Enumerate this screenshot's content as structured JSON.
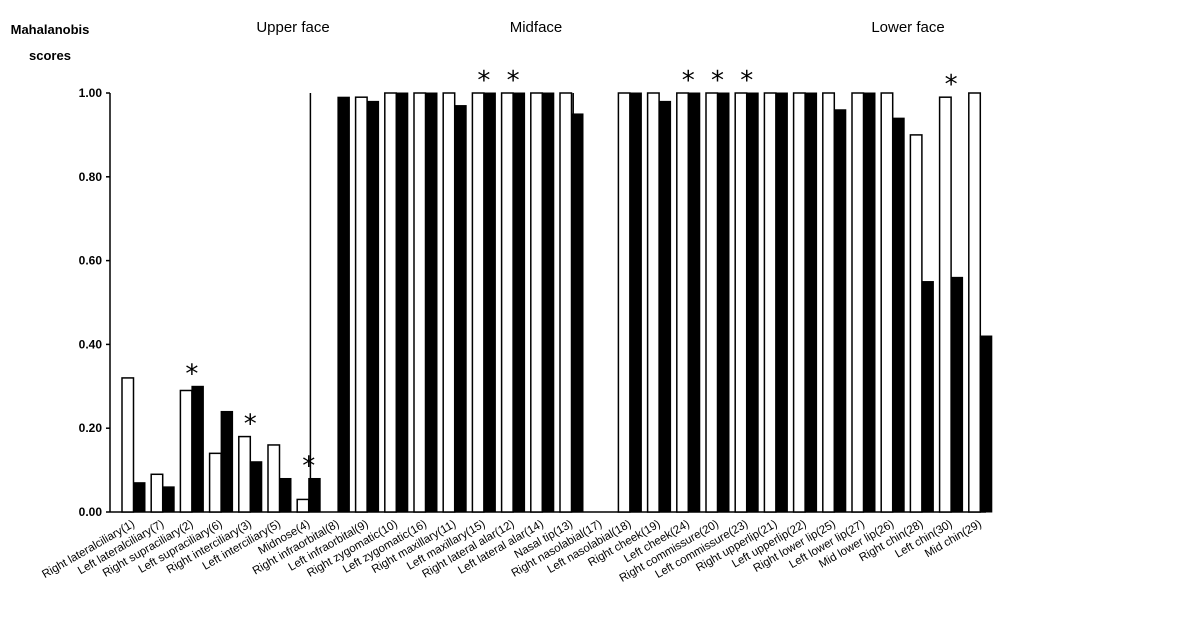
{
  "chart_data": {
    "type": "bar",
    "ylabel": [
      "Mahalanobis",
      "scores"
    ],
    "ylim": [
      0,
      1
    ],
    "yticks": [
      "0.00",
      "0.20",
      "0.40",
      "0.60",
      "0.80",
      "1.00"
    ],
    "grid": false,
    "sections": [
      "Upper face",
      "Midface",
      "Lower face"
    ],
    "categories": [
      "Right lateralciliary(1)",
      "Left lateralciliary(7)",
      "Right supraciliary(2)",
      "Left supraciliary(6)",
      "Right interciliary(3)",
      "Left interciliary(5)",
      "Midnose(4)",
      "Right infraorbital(8)",
      "Left infraorbital(9)",
      "Right zygomatic(10)",
      "Left zygomatic(16)",
      "Right maxillary(11)",
      "Left maxillary(15)",
      "Right lateral alar(12)",
      "Left lateral alar(14)",
      "Nasal tip(13)",
      "Right nasolabial(17)",
      "Left nasolabial(18)",
      "Right cheek(19)",
      "Left cheek(24)",
      "Right commissure(20)",
      "Left commissure(23)",
      "Right upperlip(21)",
      "Left upperlip(22)",
      "Right lower lip(25)",
      "Left lower lip(27)",
      "Mid lower lip(26)",
      "Right chin(28)",
      "Left chin(30)",
      "Mid chin(29)"
    ],
    "series": [
      {
        "color": "#ffffff",
        "values": [
          0.32,
          0.09,
          0.29,
          0.14,
          0.18,
          0.16,
          0.03,
          0.0,
          0.99,
          1.0,
          1.0,
          1.0,
          1.0,
          1.0,
          1.0,
          1.0,
          0.0,
          1.0,
          1.0,
          1.0,
          1.0,
          1.0,
          1.0,
          1.0,
          1.0,
          1.0,
          1.0,
          0.9,
          0.99,
          1.0
        ]
      },
      {
        "color": "#000000",
        "values": [
          0.07,
          0.06,
          0.3,
          0.24,
          0.12,
          0.08,
          0.08,
          0.99,
          0.98,
          1.0,
          1.0,
          0.97,
          1.0,
          1.0,
          1.0,
          0.95,
          0.0,
          1.0,
          0.98,
          1.0,
          1.0,
          1.0,
          1.0,
          1.0,
          0.96,
          1.0,
          0.94,
          0.55,
          0.56,
          0.42
        ]
      }
    ],
    "mid_chin_partial": {
      "white": 0.9,
      "black": 0.06
    },
    "asterisks": [
      2,
      4,
      6,
      12,
      13,
      19,
      20,
      21,
      28
    ],
    "asterisk_symbol": "*"
  }
}
